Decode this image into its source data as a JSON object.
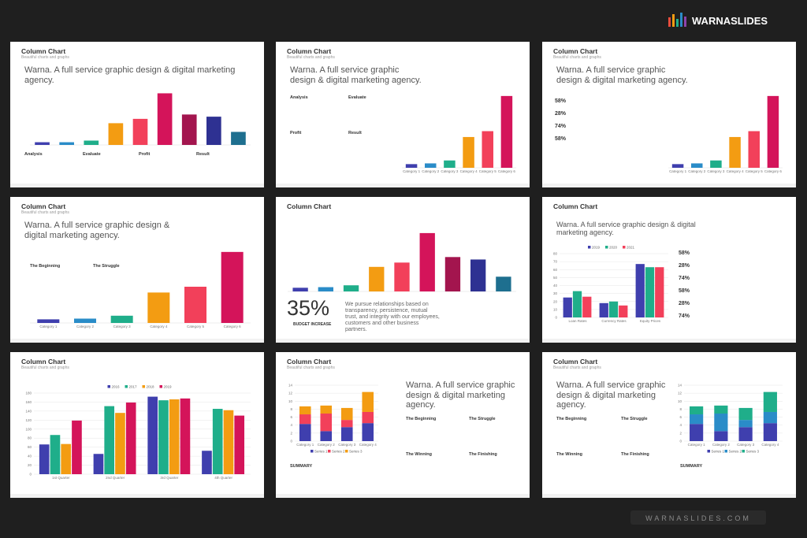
{
  "brand": "WARNASLIDES",
  "footer": "WARNASLIDES.COM",
  "slides": [
    {
      "title": "Column Chart",
      "subtitle": "Beautiful charts and graphs",
      "heading": "Warna. A full service graphic design & digital marketing agency.",
      "labels": [
        "Analysis",
        "Evaluate",
        "Profit",
        "Result"
      ],
      "chart": {
        "type": "bar",
        "ylim": [
          0,
          100
        ],
        "values": [
          5,
          5,
          8,
          40,
          48,
          95,
          56,
          52,
          24
        ],
        "colors": [
          "#3f3fae",
          "#2a8cc8",
          "#1fae8a",
          "#f39c12",
          "#f2405a",
          "#d4145a",
          "#a3154e",
          "#2e3192",
          "#1e6f8f"
        ]
      }
    },
    {
      "title": "Column Chart",
      "subtitle": "Beautiful charts and graphs",
      "heading": "Warna. A full service graphic design & digital marketing agency.",
      "labels": [
        "Analysis",
        "Evaluate",
        "Profit",
        "Result"
      ],
      "chart": {
        "type": "bar",
        "ylim": [
          0,
          100
        ],
        "values": [
          5,
          6,
          10,
          42,
          50,
          98
        ],
        "categories": [
          "Category 1",
          "Category 2",
          "Category 3",
          "Category 4",
          "Category 5",
          "Category 6"
        ],
        "colors": [
          "#3f3fae",
          "#2a8cc8",
          "#1fae8a",
          "#f39c12",
          "#f2405a",
          "#d4145a"
        ]
      }
    },
    {
      "title": "Column Chart",
      "subtitle": "Beautiful charts and graphs",
      "heading": "Warna. A full service graphic design & digital marketing agency.",
      "labels": [
        "58%",
        "28%",
        "74%",
        "58%"
      ],
      "chart": {
        "type": "bar",
        "ylim": [
          0,
          100
        ],
        "values": [
          5,
          6,
          10,
          42,
          50,
          98
        ],
        "categories": [
          "Category 1",
          "Category 2",
          "Category 3",
          "Category 4",
          "Category 5",
          "Category 6"
        ],
        "colors": [
          "#3f3fae",
          "#2a8cc8",
          "#1fae8a",
          "#f39c12",
          "#f2405a",
          "#d4145a"
        ]
      }
    },
    {
      "title": "Column Chart",
      "subtitle": "Beautiful charts and graphs",
      "heading": "Warna. A full service graphic design & digital marketing agency.",
      "labels": [
        "The Beginning",
        "The Struggle"
      ],
      "chart": {
        "type": "bar",
        "ylim": [
          0,
          100
        ],
        "values": [
          5,
          6,
          10,
          42,
          50,
          98
        ],
        "categories": [
          "Category 1",
          "Category 2",
          "Category 3",
          "Category 4",
          "Category 5",
          "Category 6"
        ],
        "colors": [
          "#3f3fae",
          "#2a8cc8",
          "#1fae8a",
          "#f39c12",
          "#f2405a",
          "#d4145a"
        ]
      }
    },
    {
      "title": "Column Chart",
      "labels": [
        "35%",
        "BUDGET INCREASE",
        "We pursue relationships based on transparency, persistence, mutual trust, and integrity with our employees, customers and other business partners."
      ],
      "chart": {
        "type": "bar",
        "ylim": [
          0,
          100
        ],
        "values": [
          6,
          7,
          10,
          40,
          47,
          95,
          56,
          52,
          24
        ],
        "colors": [
          "#3f3fae",
          "#2a8cc8",
          "#1fae8a",
          "#f39c12",
          "#f2405a",
          "#d4145a",
          "#a3154e",
          "#2e3192",
          "#1e6f8f"
        ]
      }
    },
    {
      "title": "Column Chart",
      "heading": "Warna. A full service graphic design & digital marketing agency.",
      "labels": [
        "58%",
        "28%",
        "74%",
        "58%",
        "28%",
        "74%"
      ],
      "chart": {
        "type": "grouped",
        "legend": "top",
        "ylim": [
          0,
          80
        ],
        "yticks": [
          0,
          10,
          20,
          30,
          40,
          50,
          60,
          70,
          80
        ],
        "categories": [
          "Loan Rates",
          "Currency Rates",
          "Equity Prices"
        ],
        "series": [
          {
            "name": "2019",
            "color": "#3f3fae",
            "values": [
              25,
              18,
              67
            ]
          },
          {
            "name": "2020",
            "color": "#1fae8a",
            "values": [
              33,
              20,
              63
            ]
          },
          {
            "name": "2021",
            "color": "#f2405a",
            "values": [
              26,
              15,
              63
            ]
          }
        ]
      }
    },
    {
      "title": "Column Chart",
      "subtitle": "Beautiful charts and graphs",
      "chart": {
        "type": "grouped",
        "legend": "top",
        "ylim": [
          0,
          180
        ],
        "yticks": [
          0,
          20,
          40,
          60,
          80,
          100,
          120,
          140,
          160,
          180
        ],
        "categories": [
          "1st Quarter",
          "2nd Quarter",
          "3rd Quarter",
          "4th Quarter"
        ],
        "series": [
          {
            "name": "2016",
            "color": "#3f3fae",
            "values": [
              66,
              45,
              172,
              52
            ]
          },
          {
            "name": "2017",
            "color": "#1fae8a",
            "values": [
              87,
              151,
              164,
              145
            ]
          },
          {
            "name": "2018",
            "color": "#f39c12",
            "values": [
              67,
              136,
              166,
              142
            ]
          },
          {
            "name": "2019",
            "color": "#d4145a",
            "values": [
              119,
              159,
              168,
              130
            ]
          }
        ]
      }
    },
    {
      "title": "Column Chart",
      "subtitle": "Beautiful charts and graphs",
      "heading": "Warna. A full service graphic design & digital marketing agency.",
      "labels": [
        "The Beginning",
        "The Struggle",
        "The Winning",
        "The Finishing",
        "SUMMARY"
      ],
      "chart": {
        "type": "stacked",
        "legend": "bottom",
        "ylim": [
          0,
          14
        ],
        "yticks": [
          0,
          2,
          4,
          6,
          8,
          10,
          12,
          14
        ],
        "categories": [
          "Category 1",
          "Category 2",
          "Category 3",
          "Category 4"
        ],
        "series": [
          {
            "name": "Series 1",
            "color": "#3f3fae",
            "values": [
              4.3,
              2.5,
              3.5,
              4.5
            ]
          },
          {
            "name": "Series 2",
            "color": "#f2405a",
            "values": [
              2.4,
              4.4,
              1.8,
              2.8
            ]
          },
          {
            "name": "Series 3",
            "color": "#f39c12",
            "values": [
              2,
              2,
              3,
              5
            ]
          }
        ]
      }
    },
    {
      "title": "Column Chart",
      "subtitle": "Beautiful charts and graphs",
      "heading": "Warna. A full service graphic design & digital marketing agency.",
      "labels": [
        "The Beginning",
        "The Struggle",
        "The Winning",
        "The Finishing",
        "SUMMARY"
      ],
      "chart": {
        "type": "stacked",
        "legend": "bottom",
        "ylim": [
          0,
          14
        ],
        "yticks": [
          0,
          2,
          4,
          6,
          8,
          10,
          12,
          14
        ],
        "categories": [
          "Category 1",
          "Category 2",
          "Category 3",
          "Category 4"
        ],
        "series": [
          {
            "name": "Series 1",
            "color": "#3f3fae",
            "values": [
              4.3,
              2.5,
              3.5,
              4.5
            ]
          },
          {
            "name": "Series 2",
            "color": "#2a8cc8",
            "values": [
              2.4,
              4.4,
              1.8,
              2.8
            ]
          },
          {
            "name": "Series 3",
            "color": "#1fae8a",
            "values": [
              2,
              2,
              3,
              5
            ]
          }
        ]
      }
    }
  ]
}
